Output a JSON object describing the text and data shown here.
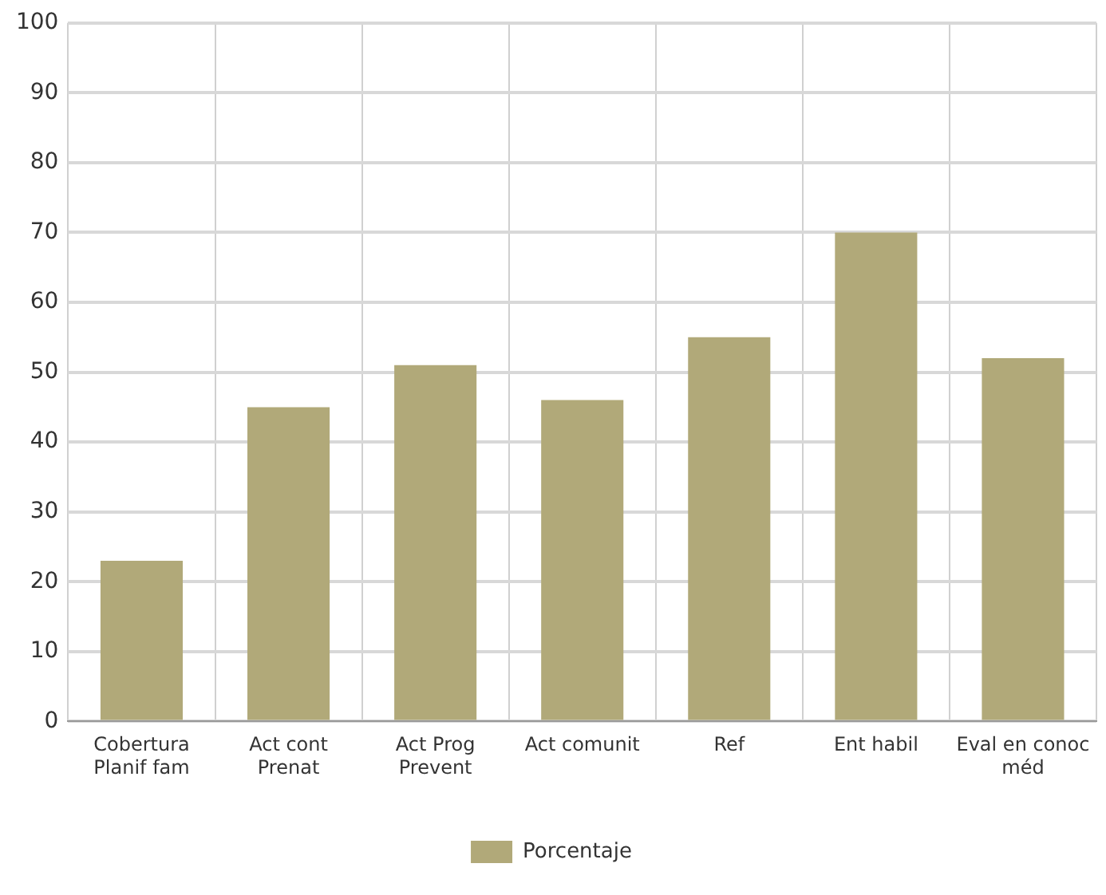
{
  "chart_data": {
    "type": "bar",
    "categories": [
      "Cobertura Planif fam",
      "Act cont Prenat",
      "Act Prog Prevent",
      "Act comunit",
      "Ref",
      "Ent habil",
      "Eval en conoc méd"
    ],
    "series": [
      {
        "name": "Porcentaje",
        "color": "#b1a979",
        "values": [
          23,
          45,
          51,
          46,
          55,
          70,
          52
        ]
      }
    ],
    "ylim": [
      0,
      100
    ],
    "yticks": [
      0,
      10,
      20,
      30,
      40,
      50,
      60,
      70,
      80,
      90,
      100
    ],
    "grid": true,
    "legend": "bottom"
  }
}
